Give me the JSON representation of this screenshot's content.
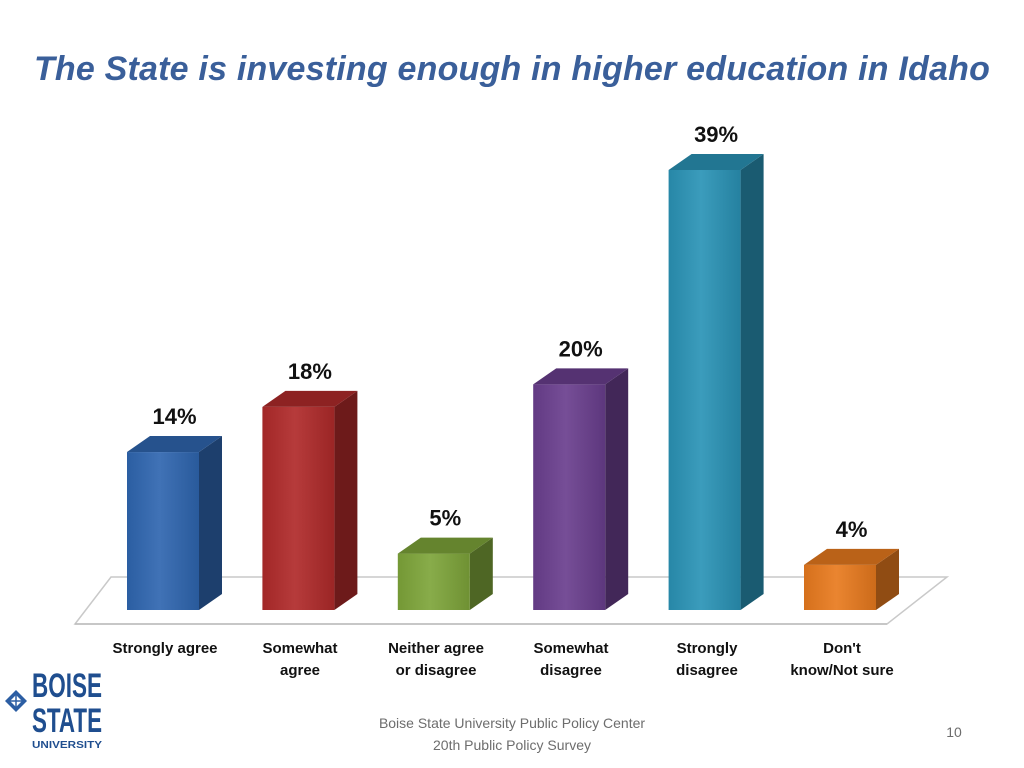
{
  "slide": {
    "title": "The State is investing enough in higher education in Idaho",
    "footer_line1": "Boise State University  Public Policy Center",
    "footer_line2": "20th Public Policy Survey",
    "page_number": "10"
  },
  "logo": {
    "line1": "BOISE",
    "line2": "STATE",
    "line3": "UNIVERSITY",
    "icon": "boise-state-diamond-icon"
  },
  "chart_data": {
    "type": "bar",
    "title": "",
    "xlabel": "",
    "ylabel": "",
    "ylim": [
      0,
      40
    ],
    "grid": false,
    "categories": [
      "Strongly agree",
      "Somewhat agree",
      "Neither agree or disagree",
      "Somewhat disagree",
      "Strongly disagree",
      "Don't know/Not sure"
    ],
    "category_lines": [
      [
        "Strongly agree"
      ],
      [
        "Somewhat",
        "agree"
      ],
      [
        "Neither agree",
        "or disagree"
      ],
      [
        "Somewhat",
        "disagree"
      ],
      [
        "Strongly",
        "disagree"
      ],
      [
        "Don't",
        "know/Not sure"
      ]
    ],
    "values": [
      14,
      18,
      5,
      20,
      39,
      4
    ],
    "data_labels": [
      "14%",
      "18%",
      "5%",
      "20%",
      "39%",
      "4%"
    ],
    "colors": [
      "#2f66b0",
      "#b02a2a",
      "#7ea53a",
      "#6a3f8e",
      "#2a93b6",
      "#e87a1e"
    ]
  }
}
